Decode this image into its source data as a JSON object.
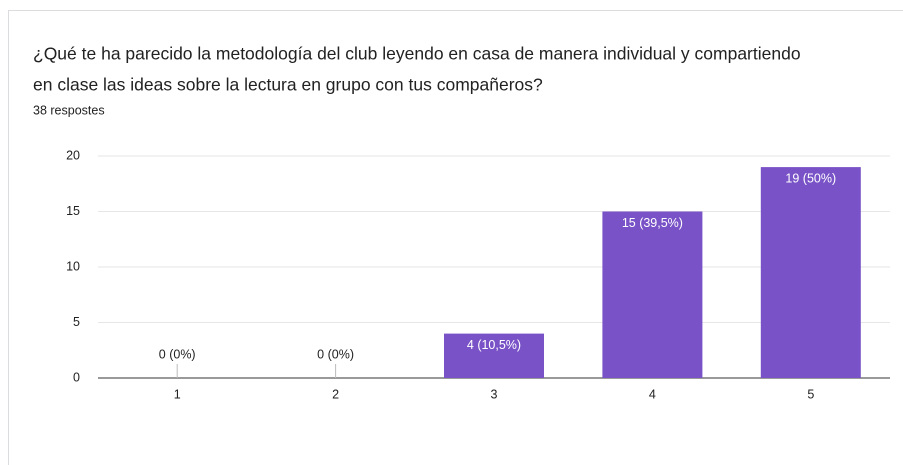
{
  "chart_data": {
    "type": "bar",
    "title": [
      "¿Qué te ha parecido la metodología del club leyendo en casa de manera individual y compartiendo",
      "en clase las ideas sobre la lectura en grupo con tus compañeros?"
    ],
    "subtitle": "38 respostes",
    "categories": [
      "1",
      "2",
      "3",
      "4",
      "5"
    ],
    "values": [
      0,
      0,
      4,
      15,
      19
    ],
    "value_labels": [
      "0 (0%)",
      "0 (0%)",
      "4 (10,5%)",
      "15 (39,5%)",
      "19 (50%)"
    ],
    "color": "#7852c6",
    "ylim": [
      0,
      20
    ],
    "yticks": [
      0,
      5,
      10,
      15,
      20
    ],
    "grid": true
  }
}
